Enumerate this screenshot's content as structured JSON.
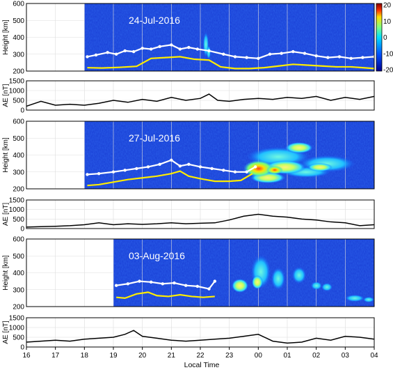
{
  "figure": {
    "xlabel": "Local Time",
    "x_ticks": [
      "16",
      "17",
      "18",
      "19",
      "20",
      "21",
      "22",
      "23",
      "00",
      "01",
      "02",
      "03",
      "04"
    ],
    "colorbar": {
      "ticks": [
        "20",
        "10",
        "0",
        "-10",
        "-20"
      ],
      "range": [
        -20,
        20
      ]
    }
  },
  "chart_data": [
    {
      "type": "heatmap",
      "title": "24-Jul-2016",
      "ylabel": "Height [km]",
      "y_ticks": [
        "600",
        "500",
        "400",
        "300",
        "200"
      ],
      "ylim": [
        200,
        600
      ],
      "data_start_lt": 18.0,
      "white_line": {
        "x": [
          18.1,
          18.4,
          18.8,
          19.1,
          19.4,
          19.7,
          20.0,
          20.3,
          20.6,
          21.0,
          21.3,
          21.6,
          21.9,
          22.3,
          22.8,
          23.2,
          23.6,
          24.0,
          24.4,
          24.8,
          25.2,
          25.6,
          26.0,
          26.4,
          26.8,
          27.2,
          27.6,
          28.0
        ],
        "y": [
          285,
          295,
          310,
          300,
          320,
          315,
          335,
          330,
          345,
          355,
          330,
          340,
          330,
          320,
          300,
          285,
          280,
          275,
          300,
          305,
          315,
          305,
          290,
          280,
          285,
          275,
          280,
          285
        ]
      },
      "yellow_line": {
        "x": [
          18.1,
          18.6,
          19.2,
          19.8,
          20.3,
          20.8,
          21.3,
          21.8,
          22.3,
          22.7,
          23.2,
          23.7,
          24.2,
          24.7,
          25.2,
          25.7,
          26.2,
          26.7,
          27.2,
          27.6,
          28.0
        ],
        "y": [
          220,
          218,
          222,
          228,
          275,
          280,
          285,
          270,
          265,
          225,
          215,
          215,
          220,
          230,
          240,
          235,
          230,
          225,
          225,
          220,
          215
        ]
      },
      "ae_panel": {
        "ylabel": "AE [nT]",
        "y_ticks": [
          "1500",
          "1000",
          "500",
          "0"
        ],
        "ylim": [
          0,
          1500
        ],
        "x": [
          16,
          16.5,
          17,
          17.5,
          18,
          18.5,
          19,
          19.5,
          20,
          20.5,
          21,
          21.5,
          22,
          22.3,
          22.6,
          23,
          23.5,
          24,
          24.5,
          25,
          25.5,
          26,
          26.5,
          27,
          27.5,
          28
        ],
        "y": [
          200,
          450,
          250,
          300,
          250,
          350,
          500,
          400,
          550,
          450,
          650,
          500,
          600,
          820,
          500,
          450,
          550,
          600,
          550,
          650,
          600,
          700,
          500,
          650,
          550,
          700
        ]
      }
    },
    {
      "type": "heatmap",
      "title": "27-Jul-2016",
      "ylabel": "Height [km]",
      "y_ticks": [
        "600",
        "500",
        "400",
        "300",
        "200"
      ],
      "ylim": [
        200,
        600
      ],
      "data_start_lt": 18.0,
      "white_line": {
        "x": [
          18.1,
          18.5,
          19.0,
          19.4,
          19.8,
          20.2,
          20.6,
          21.0,
          21.3,
          21.6,
          22.0,
          22.4,
          22.8,
          23.2,
          23.6,
          23.9
        ],
        "y": [
          285,
          290,
          300,
          310,
          320,
          330,
          345,
          370,
          335,
          345,
          330,
          320,
          310,
          300,
          300,
          330
        ]
      },
      "yellow_line": {
        "x": [
          18.1,
          18.5,
          19.0,
          19.5,
          20.0,
          20.5,
          21.0,
          21.3,
          21.6,
          22.0,
          22.5,
          23.0,
          23.4,
          23.8
        ],
        "y": [
          220,
          225,
          240,
          255,
          265,
          275,
          290,
          305,
          275,
          260,
          245,
          245,
          250,
          290
        ]
      },
      "ae_panel": {
        "ylabel": "AE [nT]",
        "y_ticks": [
          "1500",
          "1000",
          "500",
          "0"
        ],
        "ylim": [
          0,
          1500
        ],
        "x": [
          16,
          16.5,
          17,
          17.5,
          18,
          18.5,
          19,
          19.5,
          20,
          20.5,
          21,
          21.5,
          22,
          22.5,
          23,
          23.5,
          24,
          24.5,
          25,
          25.5,
          26,
          26.5,
          27,
          27.5,
          28
        ],
        "y": [
          80,
          100,
          120,
          150,
          200,
          300,
          200,
          250,
          220,
          250,
          300,
          250,
          280,
          300,
          450,
          650,
          750,
          650,
          600,
          500,
          450,
          350,
          300,
          150,
          200
        ]
      }
    },
    {
      "type": "heatmap",
      "title": "03-Aug-2016",
      "ylabel": "Height [km]",
      "y_ticks": [
        "600",
        "500",
        "400",
        "300",
        "200"
      ],
      "ylim": [
        200,
        600
      ],
      "data_start_lt": 19.0,
      "white_line": {
        "x": [
          19.1,
          19.5,
          19.9,
          20.3,
          20.7,
          21.1,
          21.5,
          21.9,
          22.3,
          22.5
        ],
        "y": [
          325,
          335,
          350,
          345,
          335,
          340,
          325,
          320,
          305,
          350
        ]
      },
      "yellow_line": {
        "x": [
          19.1,
          19.4,
          19.8,
          20.2,
          20.5,
          20.9,
          21.3,
          21.7,
          22.1,
          22.5
        ],
        "y": [
          255,
          250,
          275,
          285,
          265,
          260,
          270,
          260,
          255,
          260
        ]
      },
      "ae_panel": {
        "ylabel": "AE [nT]",
        "y_ticks": [
          "1500",
          "1000",
          "500",
          "0"
        ],
        "ylim": [
          0,
          1500
        ],
        "x": [
          16,
          16.5,
          17,
          17.5,
          18,
          18.5,
          19,
          19.4,
          19.7,
          20,
          20.5,
          21,
          21.5,
          22,
          22.5,
          23,
          23.5,
          24,
          24.5,
          25,
          25.5,
          26,
          26.5,
          27,
          27.5,
          28
        ],
        "y": [
          250,
          300,
          350,
          300,
          400,
          450,
          500,
          650,
          850,
          550,
          450,
          350,
          300,
          350,
          400,
          450,
          550,
          650,
          300,
          200,
          250,
          450,
          350,
          550,
          500,
          400
        ]
      }
    }
  ]
}
